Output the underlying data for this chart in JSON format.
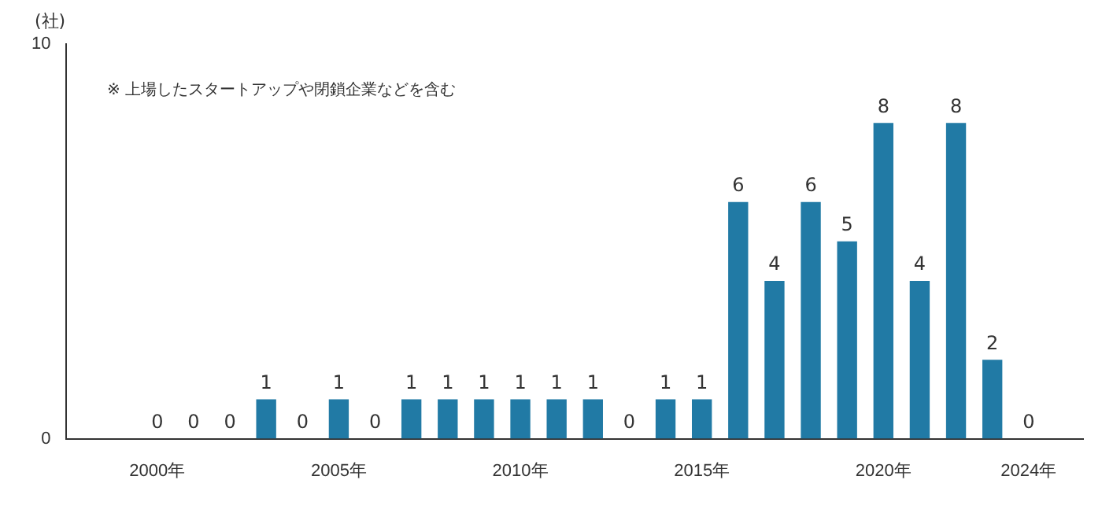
{
  "chart_data": {
    "type": "bar",
    "ylabel": "(社)",
    "categories": [
      null,
      null,
      "2000年",
      null,
      null,
      null,
      null,
      "2005年",
      null,
      null,
      null,
      null,
      "2010年",
      null,
      null,
      null,
      null,
      "2015年",
      null,
      null,
      null,
      null,
      "2020年",
      null,
      null,
      null,
      "2024年",
      null
    ],
    "values": [
      null,
      null,
      0,
      0,
      0,
      1,
      0,
      1,
      0,
      1,
      1,
      1,
      1,
      1,
      1,
      0,
      1,
      1,
      6,
      4,
      6,
      5,
      8,
      4,
      8,
      2,
      0,
      null
    ],
    "color": "#217aa5",
    "ylim": [
      0,
      10
    ],
    "yticks": [
      0,
      10
    ],
    "grid": false,
    "data_labels": true,
    "legend": false,
    "annotations": [
      "※ 上場したスタートアップや閉鎖企業などを含む"
    ]
  }
}
